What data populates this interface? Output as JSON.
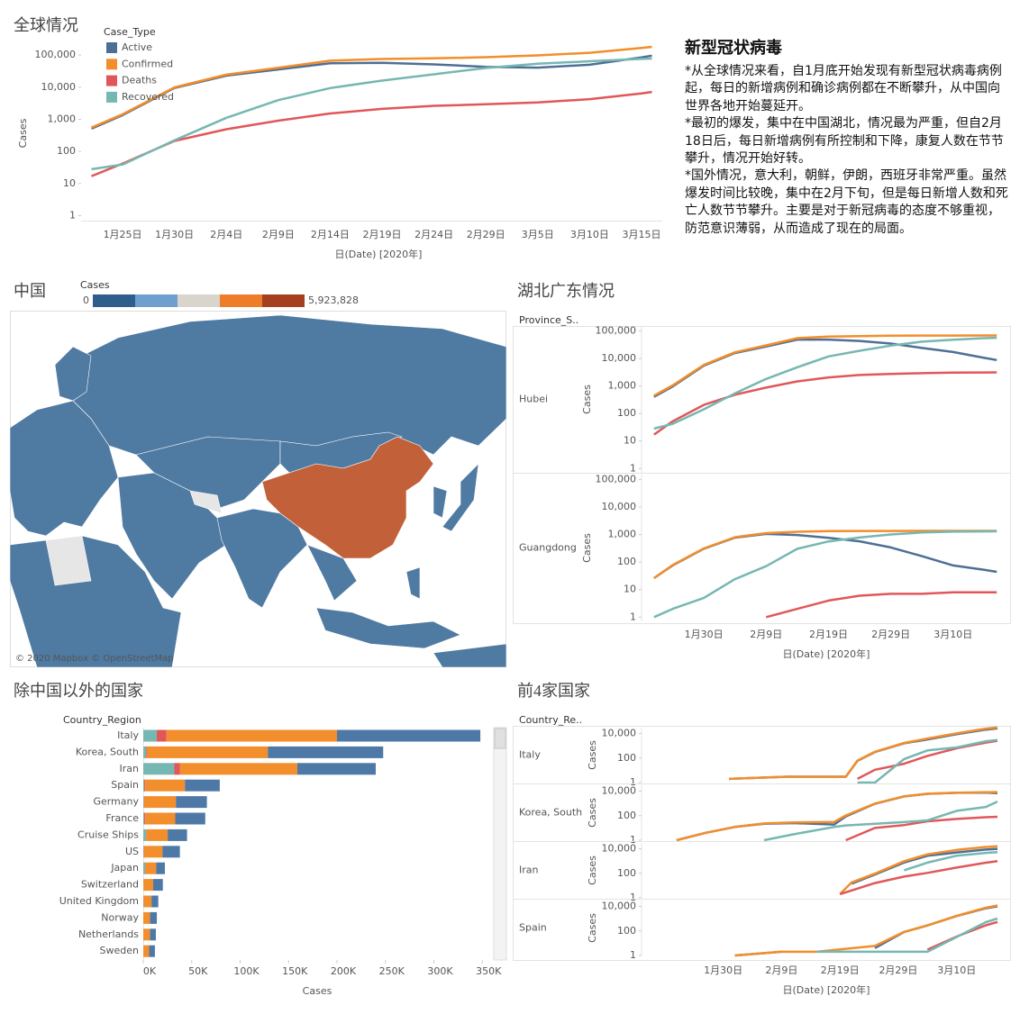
{
  "text_panel": {
    "title": "新型冠状病毒",
    "paragraphs": [
      "*从全球情况来看，自1月底开始发现有新型冠状病毒病例起，每日的新增病例和确诊病例都在不断攀升，从中国向世界各地开始蔓延开。",
      "*最初的爆发，集中在中国湖北，情况最为严重，但自2月18日后，每日新增病例有所控制和下降，康复人数在节节攀升，情况开始好转。",
      "*国外情况，意大利，朝鲜，伊朗，西班牙非常严重。虽然爆发时间比较晚，集中在2月下旬，但是每日新增人数和死亡人数节节攀升。主要是对于新冠病毒的态度不够重视，防范意识薄弱，从而造成了现在的局面。"
    ]
  },
  "map": {
    "title": "中国",
    "legend_title": "Cases",
    "legend_min": 0,
    "legend_max": {
      "value": 5923828,
      "label": "5,923,828"
    },
    "colors": [
      "#2e5f8c",
      "#6e9fcf",
      "#d9d4cc",
      "#ee7d2a",
      "#a4401f"
    ],
    "attribution": "© 2020 Mapbox © OpenStreetMap"
  },
  "chart_data": [
    {
      "type": "line",
      "title": "全球情况",
      "legend_title": "Case_Type",
      "ylabel": "Cases",
      "xlabel": "日(Date) [2020年]",
      "log_scale": true,
      "x": [
        "1月22日",
        "1月25日",
        "1月30日",
        "2月4日",
        "2月9日",
        "2月14日",
        "2月19日",
        "2月24日",
        "2月29日",
        "3月5日",
        "3月10日",
        "3月15日",
        "3月16日"
      ],
      "xlim": [
        "1月21日",
        "3月17日"
      ],
      "xticks": [
        "1月25日",
        "1月30日",
        "2月4日",
        "2月9日",
        "2月14日",
        "2月19日",
        "2月24日",
        "2月29日",
        "3月5日",
        "3月10日",
        "3月15日"
      ],
      "ylim": [
        0.7,
        250000
      ],
      "yticks": [
        1,
        10,
        100,
        {
          "value": 1000,
          "label": "1,000"
        },
        {
          "value": 10000,
          "label": "10,000"
        },
        {
          "value": 100000,
          "label": "100,000"
        }
      ],
      "series": [
        {
          "name": "Active",
          "color": "#4e6f95",
          "values": [
            510,
            1357,
            9492,
            22947,
            35696,
            55966,
            57398,
            51500,
            43288,
            40741,
            49916,
            84973,
            96332
          ]
        },
        {
          "name": "Confirmed",
          "color": "#f28e2b",
          "values": [
            555,
            1438,
            9927,
            24554,
            40554,
            66887,
            75641,
            79356,
            86011,
            97886,
            118582,
            167447,
            181546
          ]
        },
        {
          "name": "Deaths",
          "color": "#e15759",
          "values": [
            17,
            42,
            213,
            492,
            910,
            1526,
            2122,
            2629,
            2941,
            3348,
            4262,
            6440,
            7126
          ]
        },
        {
          "name": "Recovered",
          "color": "#76b7b2",
          "values": [
            28,
            39,
            222,
            1115,
            3948,
            9395,
            16121,
            25227,
            39782,
            53797,
            64404,
            76034,
            78088
          ]
        }
      ]
    },
    {
      "type": "line-facets",
      "title": "湖北广东情况",
      "facet_label": "Province_S..",
      "ylabel": "Cases",
      "xlabel": "日(Date) [2020年]",
      "log_scale": true,
      "xlim": [
        "1月20日",
        "3月19日"
      ],
      "xticks": [
        "1月30日",
        "2月9日",
        "2月19日",
        "2月29日",
        "3月10日"
      ],
      "ylim": [
        0.7,
        150000
      ],
      "yticks": [
        1,
        10,
        100,
        {
          "value": 1000,
          "label": "1,000"
        },
        {
          "value": 10000,
          "label": "10,000"
        },
        {
          "value": 100000,
          "label": "100,000"
        }
      ],
      "facets": [
        {
          "name": "Hubei",
          "x": [
            "1月22日",
            "1月25日",
            "1月30日",
            "2月4日",
            "2月9日",
            "2月14日",
            "2月19日",
            "2月24日",
            "2月29日",
            "3月5日",
            "3月10日",
            "3月15日",
            "3月17日"
          ],
          "series": [
            {
              "color": "#4e6f95",
              "values": [
                399,
                958,
                5461,
                15661,
                26965,
                48175,
                48214,
                42938,
                34617,
                23972,
                16993,
                10431,
                8685
              ]
            },
            {
              "color": "#f28e2b",
              "values": [
                444,
                1052,
                5806,
                16678,
                29631,
                54406,
                62031,
                64287,
                66337,
                67466,
                67760,
                67794,
                67799
              ]
            },
            {
              "color": "#e15759",
              "values": [
                17,
                52,
                204,
                479,
                871,
                1457,
                2029,
                2495,
                2727,
                2902,
                3024,
                3075,
                3111
              ]
            },
            {
              "color": "#76b7b2",
              "values": [
                28,
                42,
                141,
                538,
                1795,
                4774,
                11788,
                18854,
                28993,
                40592,
                47743,
                54288,
                56003
              ]
            }
          ]
        },
        {
          "name": "Guangdong",
          "x": [
            "1月22日",
            "1月25日",
            "1月30日",
            "2月4日",
            "2月9日",
            "2月14日",
            "2月19日",
            "2月24日",
            "2月29日",
            "3月5日",
            "3月10日",
            "3月15日",
            "3月17日"
          ],
          "series": [
            {
              "color": "#4e6f95",
              "values": [
                26,
                76,
                306,
                773,
                1048,
                956,
                756,
                564,
                339,
                163,
                75,
                52,
                44
              ]
            },
            {
              "color": "#f28e2b",
              "values": [
                26,
                78,
                311,
                797,
                1120,
                1261,
                1322,
                1345,
                1349,
                1351,
                1353,
                1356,
                1356
              ]
            },
            {
              "color": "#e15759",
              "values": [
                null,
                null,
                null,
                null,
                1,
                2,
                4,
                6,
                7,
                7,
                8,
                8,
                8
              ]
            },
            {
              "color": "#76b7b2",
              "values": [
                1,
                2,
                5,
                24,
                71,
                303,
                562,
                775,
                1003,
                1181,
                1270,
                1296,
                1304
              ]
            }
          ]
        }
      ]
    },
    {
      "type": "hbar-stacked",
      "title": "除中国以外的国家",
      "axis_label": "Country_Region",
      "xlabel": "Cases",
      "categories": [
        "Italy",
        "Korea, South",
        "Iran",
        "Spain",
        "Germany",
        "France",
        "Cruise Ships",
        "US",
        "Japan",
        "Switzerland",
        "United Kingdom",
        "Norway",
        "Netherlands",
        "Sweden"
      ],
      "xlim": [
        0,
        360000
      ],
      "xticks": [
        {
          "value": 0,
          "label": "0K"
        },
        {
          "value": 50000,
          "label": "50K"
        },
        {
          "value": 100000,
          "label": "100K"
        },
        {
          "value": 150000,
          "label": "150K"
        },
        {
          "value": 200000,
          "label": "200K"
        },
        {
          "value": 250000,
          "label": "250K"
        },
        {
          "value": 300000,
          "label": "300K"
        },
        {
          "value": 350000,
          "label": "350K"
        }
      ],
      "series": [
        {
          "color": "#76b7b2",
          "values": [
            14000,
            3000,
            32000,
            1000,
            500,
            1000,
            3000,
            300,
            2000,
            100,
            200,
            10,
            10,
            10
          ]
        },
        {
          "color": "#e15759",
          "values": [
            10000,
            700,
            6000,
            1000,
            200,
            1000,
            200,
            500,
            300,
            100,
            300,
            10,
            20,
            20
          ]
        },
        {
          "color": "#f28e2b",
          "values": [
            176000,
            125000,
            121000,
            41000,
            33000,
            31000,
            22000,
            19000,
            11000,
            10000,
            8000,
            7000,
            7000,
            6000
          ]
        },
        {
          "color": "#4e79a7",
          "values": [
            148000,
            119000,
            81000,
            36000,
            32000,
            31000,
            20000,
            18000,
            9000,
            10000,
            7000,
            7000,
            6000,
            6000
          ]
        }
      ]
    },
    {
      "type": "line-facets",
      "title": "前4家国家",
      "facet_label": "Country_Re..",
      "ylabel": "Cases",
      "xlabel": "日(Date) [2020年]",
      "log_scale": true,
      "xlim": [
        "1月16日",
        "3月19日"
      ],
      "xticks": [
        "1月30日",
        "2月9日",
        "2月19日",
        "2月29日",
        "3月10日"
      ],
      "ylim": [
        1,
        30000
      ],
      "yticks": [
        1,
        100,
        {
          "value": 10000,
          "label": "10,000"
        }
      ],
      "facets": [
        {
          "name": "Italy",
          "x": [
            "1月31日",
            "2月10日",
            "2月20日",
            "2月22日",
            "2月25日",
            "3月1日",
            "3月5日",
            "3月10日",
            "3月15日",
            "3月17日"
          ],
          "series": [
            {
              "color": "#4e6f95",
              "values": [
                2,
                3,
                3,
                59,
                310,
                1577,
                3296,
                8794,
                20603,
                26062
              ]
            },
            {
              "color": "#f28e2b",
              "values": [
                2,
                3,
                3,
                62,
                322,
                1694,
                3858,
                10149,
                24747,
                31506
              ]
            },
            {
              "color": "#e15759",
              "values": [
                null,
                null,
                null,
                2,
                11,
                34,
                148,
                631,
                1809,
                2503
              ]
            },
            {
              "color": "#76b7b2",
              "values": [
                null,
                null,
                null,
                1,
                1,
                83,
                414,
                724,
                2335,
                2941
              ]
            }
          ]
        },
        {
          "name": "Korea, South",
          "x": [
            "1月22日",
            "1月27日",
            "2月1日",
            "2月6日",
            "2月11日",
            "2月18日",
            "2月20日",
            "2月25日",
            "3月1日",
            "3月5日",
            "3月10日",
            "3月15日",
            "3月17日"
          ],
          "series": [
            {
              "color": "#4e6f95",
              "values": [
                1,
                4,
                12,
                22,
                25,
                19,
                87,
                945,
                3689,
                6012,
                7212,
                7577,
                6832
              ]
            },
            {
              "color": "#f28e2b",
              "values": [
                1,
                4,
                12,
                23,
                28,
                31,
                104,
                977,
                3736,
                6088,
                7513,
                8162,
                8320
              ]
            },
            {
              "color": "#e15759",
              "values": [
                null,
                null,
                null,
                null,
                null,
                null,
                1,
                10,
                17,
                35,
                54,
                75,
                81
              ]
            },
            {
              "color": "#76b7b2",
              "values": [
                null,
                null,
                null,
                1,
                3,
                12,
                16,
                22,
                30,
                41,
                247,
                510,
                1407
              ]
            }
          ]
        },
        {
          "name": "Iran",
          "x": [
            "2月19日",
            "2月21日",
            "2月25日",
            "3月1日",
            "3月5日",
            "3月10日",
            "3月15日",
            "3月17日"
          ],
          "series": [
            {
              "color": "#4e6f95",
              "values": [
                null,
                14,
                79,
                749,
                2667,
                5020,
                8624,
                9792
              ]
            },
            {
              "color": "#f28e2b",
              "values": [
                2,
                18,
                95,
                978,
                3513,
                8042,
                13938,
                16169
              ]
            },
            {
              "color": "#e15759",
              "values": [
                2,
                4,
                16,
                54,
                107,
                291,
                724,
                988
              ]
            },
            {
              "color": "#76b7b2",
              "values": [
                null,
                null,
                null,
                175,
                739,
                2731,
                4590,
                5389
              ]
            }
          ]
        },
        {
          "name": "Spain",
          "x": [
            "2月1日",
            "2月9日",
            "2月15日",
            "2月25日",
            "3月1日",
            "3月5日",
            "3月10日",
            "3月15日",
            "3月17日"
          ],
          "series": [
            {
              "color": "#4e6f95",
              "values": [
                1,
                2,
                null,
                4,
                82,
                277,
                1628,
                6992,
                10187
              ]
            },
            {
              "color": "#f28e2b",
              "values": [
                1,
                2,
                2,
                6,
                84,
                282,
                1695,
                7798,
                11748
              ]
            },
            {
              "color": "#e15759",
              "values": [
                null,
                null,
                null,
                null,
                null,
                3,
                35,
                289,
                533
              ]
            },
            {
              "color": "#76b7b2",
              "values": [
                null,
                null,
                2,
                2,
                2,
                2,
                32,
                517,
                1028
              ]
            }
          ]
        }
      ]
    }
  ]
}
